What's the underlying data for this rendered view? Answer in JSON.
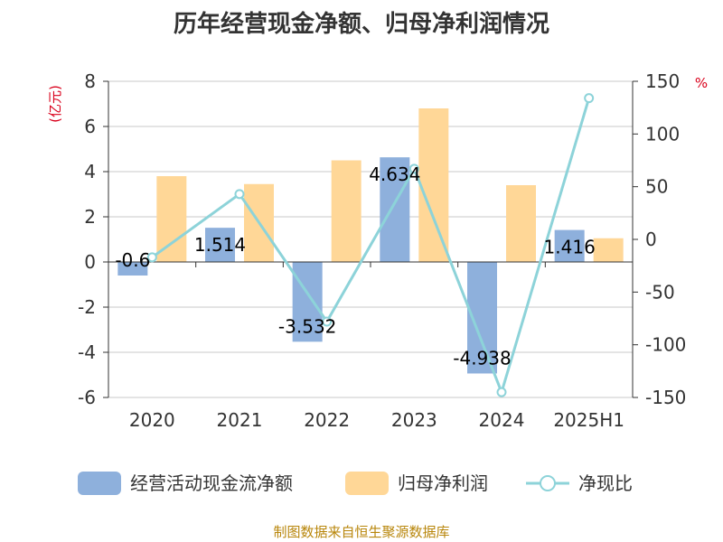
{
  "chart_data": {
    "type": "bar",
    "title": "历年经营现金净额、归母净利润情况",
    "categories": [
      "2020",
      "2021",
      "2022",
      "2023",
      "2024",
      "2025H1"
    ],
    "series": [
      {
        "name": "经营活动现金流净额",
        "type": "bar",
        "axis": "left",
        "color": "#8eb0dc",
        "values": [
          -0.6,
          1.514,
          -3.532,
          4.634,
          -4.938,
          1.416
        ],
        "labels": [
          "-0.6",
          "1.514",
          "-3.532",
          "4.634",
          "-4.938",
          "1.416"
        ]
      },
      {
        "name": "归母净利润",
        "type": "bar",
        "axis": "left",
        "color": "#ffd797",
        "values": [
          3.8,
          3.45,
          4.5,
          6.8,
          3.4,
          1.05
        ]
      },
      {
        "name": "净现比",
        "type": "line",
        "axis": "right",
        "color": "#8dd3d9",
        "values": [
          -17,
          43,
          -78,
          67,
          -145,
          134
        ]
      }
    ],
    "y_left": {
      "unit": "(亿元)",
      "min": -6,
      "max": 8,
      "ticks": [
        -6,
        -4,
        -2,
        0,
        2,
        4,
        6,
        8
      ],
      "grid": true
    },
    "y_right": {
      "unit": "%",
      "min": -150,
      "max": 150,
      "ticks": [
        -150,
        -100,
        -50,
        0,
        50,
        100,
        150
      ]
    },
    "legend": {
      "position": "bottom"
    },
    "source": "制图数据来自恒生聚源数据库"
  }
}
